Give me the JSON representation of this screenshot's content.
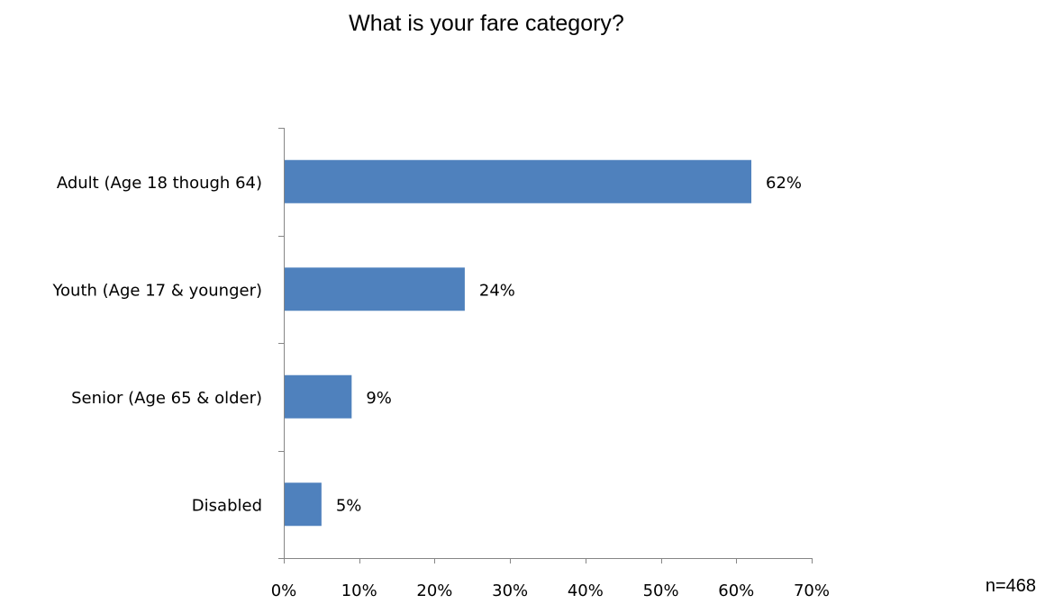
{
  "chart_data": {
    "type": "bar",
    "orientation": "horizontal",
    "title": "What is your fare category?",
    "categories": [
      "Adult (Age 18 though 64)",
      "Youth (Age 17 & younger)",
      "Senior (Age 65 & older)",
      "Disabled"
    ],
    "values": [
      62,
      24,
      9,
      5
    ],
    "value_labels": [
      "62%",
      "24%",
      "9%",
      "5%"
    ],
    "x_ticks": [
      "0%",
      "10%",
      "20%",
      "30%",
      "40%",
      "50%",
      "60%",
      "70%"
    ],
    "xlim": [
      0,
      70
    ],
    "xlabel": "",
    "ylabel": "",
    "grid": false,
    "legend": "none",
    "bar_color": "#4f81bd"
  },
  "footnote": "n=468"
}
